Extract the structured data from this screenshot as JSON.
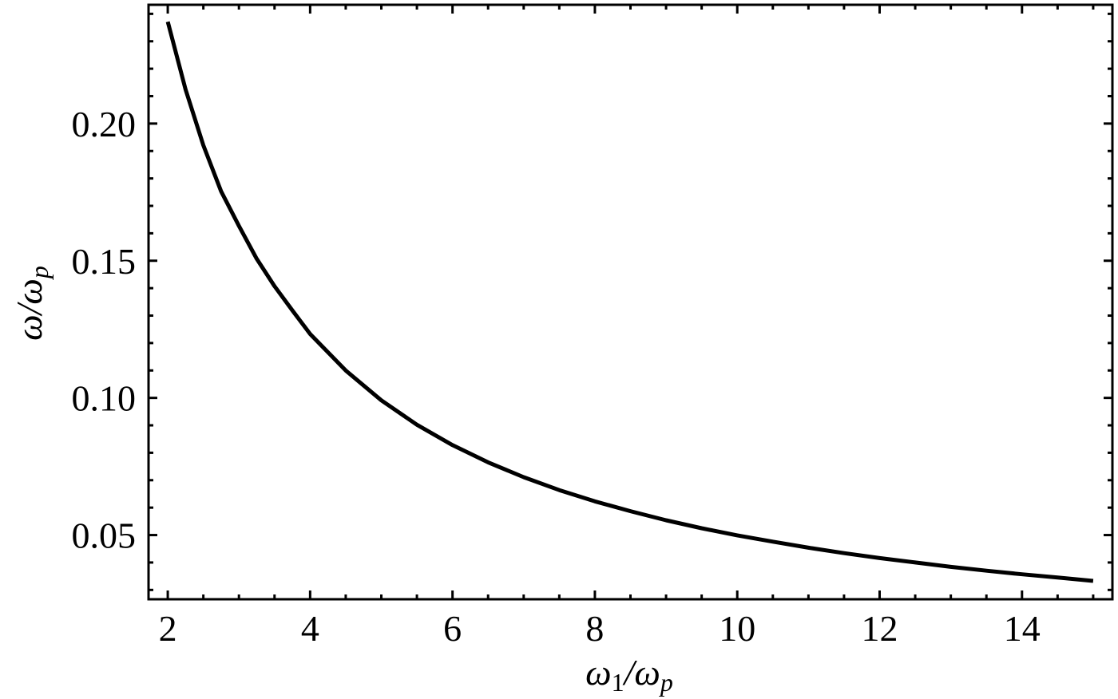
{
  "chart_data": {
    "type": "line",
    "title": "",
    "xlabel": "ω1/ωp",
    "ylabel": "ω/ωp",
    "xlim": [
      1.73,
      15.27
    ],
    "ylim": [
      0.0266,
      0.2433
    ],
    "x_ticks": [
      2,
      4,
      6,
      8,
      10,
      12,
      14
    ],
    "x_tick_labels": [
      "2",
      "4",
      "6",
      "8",
      "10",
      "12",
      "14"
    ],
    "x_minor_step": 0.5,
    "y_ticks": [
      0.05,
      0.1,
      0.15,
      0.2
    ],
    "y_tick_labels": [
      "0.05",
      "0.10",
      "0.15",
      "0.20"
    ],
    "y_minor_step": 0.01,
    "grid": false,
    "legend": null,
    "series": [
      {
        "name": "ω/ωp vs ω1/ωp",
        "color": "#000000",
        "x": [
          2.0,
          2.25,
          2.5,
          2.75,
          3.0,
          3.25,
          3.5,
          3.75,
          4.0,
          4.5,
          5.0,
          5.5,
          6.0,
          6.5,
          7.0,
          7.5,
          8.0,
          8.5,
          9.0,
          9.5,
          10.0,
          10.5,
          11.0,
          11.5,
          12.0,
          12.5,
          13.0,
          13.5,
          14.0,
          14.5,
          15.0
        ],
        "y": [
          0.2371,
          0.2124,
          0.1921,
          0.1753,
          0.1627,
          0.1507,
          0.1407,
          0.1319,
          0.1233,
          0.11,
          0.0991,
          0.0902,
          0.0828,
          0.0765,
          0.0711,
          0.0664,
          0.0623,
          0.0587,
          0.0554,
          0.0525,
          0.0499,
          0.0476,
          0.0454,
          0.0434,
          0.0416,
          0.04,
          0.0384,
          0.037,
          0.0357,
          0.0345,
          0.0333
        ]
      }
    ]
  },
  "axes": {
    "x_label_main": "ω",
    "x_label_sub": "1",
    "x_label_slash": "/ω",
    "x_label_sub2": "p",
    "y_label_main": "ω/ω",
    "y_label_sub": "p"
  }
}
